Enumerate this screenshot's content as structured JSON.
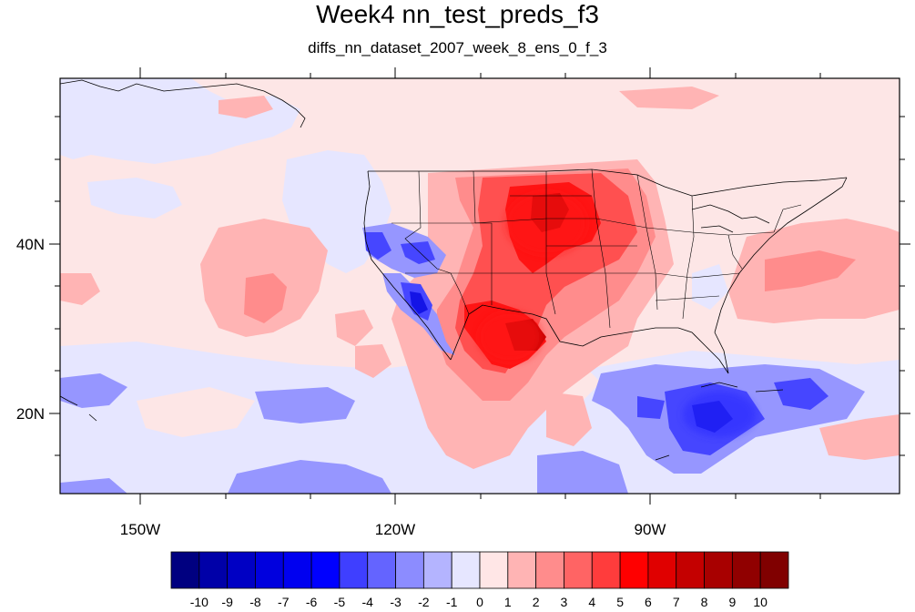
{
  "title": "Week4 nn_test_preds_f3",
  "subtitle": "diffs_nn_dataset_2007_week_8_ens_0_f_3",
  "map": {
    "lon_labels": [
      "150W",
      "120W",
      "90W"
    ],
    "lat_labels": [
      "40N",
      "20N"
    ],
    "background_value_color": "#fde6e6"
  },
  "colorbar": {
    "labels": [
      "-10",
      "-9",
      "-8",
      "-7",
      "-6",
      "-5",
      "-4",
      "-3",
      "-2",
      "-1",
      "0",
      "1",
      "2",
      "3",
      "4",
      "5",
      "6",
      "7",
      "8",
      "9",
      "10"
    ],
    "colors": [
      "#000080",
      "#0000a8",
      "#0000c4",
      "#0000de",
      "#0000f0",
      "#0000ff",
      "#3f3fff",
      "#6464ff",
      "#8c8cff",
      "#b4b4ff",
      "#e6e6ff",
      "#ffe6e6",
      "#ffb4b4",
      "#ff8c8c",
      "#ff6464",
      "#ff3c3c",
      "#ff0000",
      "#e00000",
      "#c40000",
      "#a80000",
      "#900000",
      "#800000"
    ]
  }
}
